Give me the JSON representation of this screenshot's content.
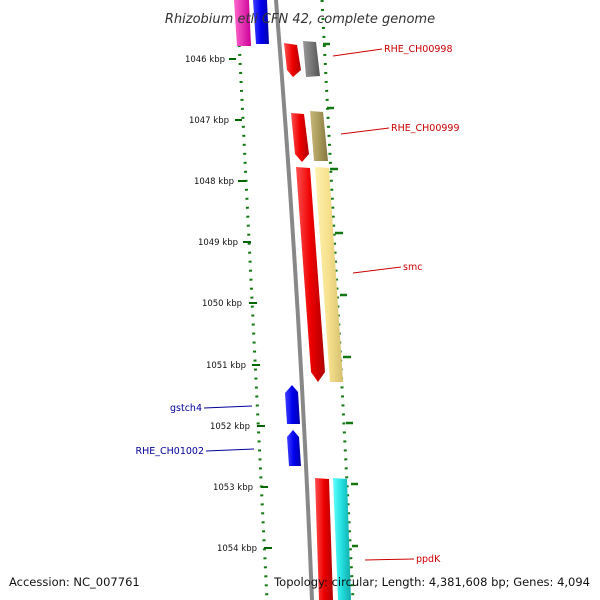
{
  "title": "Rhizobium etli CFN 42, complete genome",
  "accession": "Accession: NC_007761",
  "topology": "Topology: circular; Length: 4,381,608 bp; Genes: 4,094",
  "kbp_labels": [
    "1046 kbp",
    "1047 kbp",
    "1048 kbp",
    "1049 kbp",
    "1050 kbp",
    "1051 kbp",
    "1052 kbp",
    "1053 kbp",
    "1054 kbp"
  ],
  "gene_labels": [
    {
      "text": "RHE_CH00998",
      "strand": "forward",
      "color": "#cc0000"
    },
    {
      "text": "RHE_CH00999",
      "strand": "forward",
      "color": "#cc0000"
    },
    {
      "text": "smc",
      "strand": "forward",
      "color": "#cc0000"
    },
    {
      "text": "gstch4",
      "strand": "reverse",
      "color": "#000099"
    },
    {
      "text": "RHE_CH01002",
      "strand": "reverse",
      "color": "#000099"
    },
    {
      "text": "ppdK",
      "strand": "forward",
      "color": "#cc0000"
    }
  ],
  "colors": {
    "forward_cds": "#ee0000",
    "reverse_cds": "#0000ee",
    "backbone": "#888888",
    "gc_skew_dots": "#117711",
    "kbp_tick": "#006600"
  }
}
